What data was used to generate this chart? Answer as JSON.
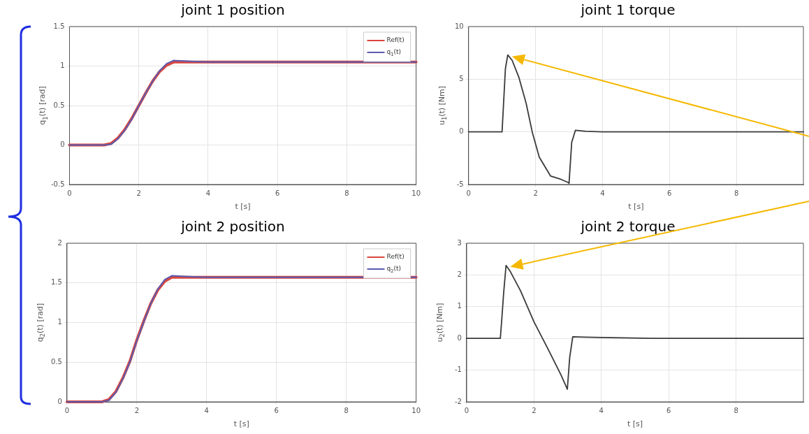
{
  "chart_data": [
    {
      "type": "line",
      "title": "joint 1 position",
      "xlabel": "t [s]",
      "ylabel": "q$_{1}$(t) [rad]",
      "xlim": [
        0,
        10
      ],
      "xticks": [
        0,
        2,
        4,
        6,
        8,
        10
      ],
      "ylim": [
        -0.5,
        1.5
      ],
      "yticks": [
        -0.5,
        0,
        0.5,
        1,
        1.5
      ],
      "grid": true,
      "legend": "top right",
      "series": [
        {
          "name": "Ref(t)",
          "color": "#d9463f",
          "x": [
            0,
            1,
            1.2,
            1.4,
            1.6,
            1.8,
            2,
            2.2,
            2.4,
            2.6,
            2.8,
            3,
            10
          ],
          "values": [
            0,
            0,
            0.02,
            0.09,
            0.2,
            0.34,
            0.5,
            0.66,
            0.81,
            0.93,
            1.01,
            1.05,
            1.05
          ]
        },
        {
          "name": "q$_{1}$(t)",
          "color": "#5b5bb0",
          "x": [
            0,
            1,
            1.2,
            1.4,
            1.6,
            1.8,
            2,
            2.2,
            2.4,
            2.6,
            2.8,
            3,
            3.5,
            4,
            10
          ],
          "values": [
            0,
            0,
            0.01,
            0.08,
            0.19,
            0.33,
            0.5,
            0.66,
            0.81,
            0.94,
            1.03,
            1.07,
            1.06,
            1.05,
            1.05
          ]
        }
      ]
    },
    {
      "type": "line",
      "title": "joint 1 torque",
      "xlabel": "t [s]",
      "ylabel": "u$_{1}$(t) [Nm]",
      "xlim": [
        0,
        10
      ],
      "xticks": [
        0,
        2,
        4,
        6,
        8
      ],
      "ylim": [
        -5,
        10
      ],
      "yticks": [
        -5,
        0,
        5,
        10
      ],
      "grid": true,
      "series": [
        {
          "color": "#3a3a3a",
          "x": [
            0,
            1,
            1.05,
            1.1,
            1.17,
            1.3,
            1.5,
            1.72,
            1.9,
            2.11,
            2.45,
            2.75,
            2.97,
            3.0,
            3.08,
            3.19,
            3.5,
            4,
            10
          ],
          "values": [
            0,
            0,
            3,
            6,
            7.3,
            6.8,
            5.2,
            2.7,
            0,
            -2.4,
            -4.2,
            -4.5,
            -4.8,
            -4.9,
            -1,
            0.15,
            0.05,
            0,
            0
          ]
        }
      ]
    },
    {
      "type": "line",
      "title": "joint 2 position",
      "xlabel": "t [s]",
      "ylabel": "q$_{2}$(t) [rad]",
      "xlim": [
        0,
        10
      ],
      "xticks": [
        0,
        2,
        4,
        6,
        8,
        10
      ],
      "ylim": [
        0,
        2
      ],
      "yticks": [
        0,
        0.5,
        1,
        1.5,
        2
      ],
      "grid": true,
      "legend": "top right",
      "series": [
        {
          "name": "Ref(t)",
          "color": "#d9463f",
          "x": [
            0,
            1,
            1.2,
            1.4,
            1.6,
            1.8,
            2,
            2.2,
            2.4,
            2.6,
            2.8,
            3,
            10
          ],
          "values": [
            0,
            0,
            0.03,
            0.13,
            0.3,
            0.51,
            0.78,
            1.02,
            1.24,
            1.41,
            1.52,
            1.57,
            1.57
          ]
        },
        {
          "name": "q$_{2}$(t)",
          "color": "#5b5bb0",
          "x": [
            0,
            1,
            1.2,
            1.4,
            1.6,
            1.8,
            2,
            2.2,
            2.4,
            2.6,
            2.8,
            3,
            3.5,
            4,
            10
          ],
          "values": [
            0,
            0,
            0.02,
            0.12,
            0.29,
            0.5,
            0.77,
            1.01,
            1.24,
            1.42,
            1.54,
            1.59,
            1.58,
            1.57,
            1.57
          ]
        }
      ]
    },
    {
      "type": "line",
      "title": "joint 2 torque",
      "xlabel": "t [s]",
      "ylabel": "u$_{2}$(t) [Nm]",
      "xlim": [
        0,
        10
      ],
      "xticks": [
        0,
        2,
        4,
        6,
        8
      ],
      "ylim": [
        -2,
        3
      ],
      "yticks": [
        -2,
        -1,
        0,
        1,
        2,
        3
      ],
      "grid": true,
      "series": [
        {
          "color": "#3a3a3a",
          "x": [
            0,
            1,
            1.05,
            1.1,
            1.17,
            1.3,
            1.6,
            2,
            2.4,
            2.8,
            2.99,
            3.06,
            3.15,
            3.5,
            4,
            5.5,
            10
          ],
          "values": [
            0,
            0,
            0.7,
            1.45,
            2.3,
            2.1,
            1.5,
            0.52,
            -0.3,
            -1.15,
            -1.6,
            -0.6,
            0.05,
            0.04,
            0.03,
            0,
            0
          ]
        }
      ]
    }
  ]
}
